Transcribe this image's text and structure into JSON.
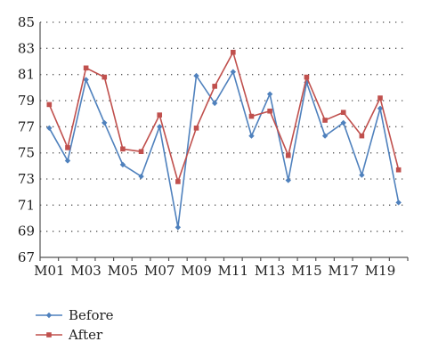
{
  "chart_data": {
    "type": "line",
    "title": "",
    "xlabel": "",
    "ylabel": "",
    "categories": [
      "M01",
      "M02",
      "M03",
      "M04",
      "M05",
      "M06",
      "M07",
      "M08",
      "M09",
      "M10",
      "M11",
      "M12",
      "M13",
      "M14",
      "M15",
      "M16",
      "M17",
      "M18",
      "M19",
      "M20"
    ],
    "x_tick_labels": [
      "M01",
      "M03",
      "M05",
      "M07",
      "M09",
      "M11",
      "M13",
      "M15",
      "M17",
      "M19"
    ],
    "y_ticks": [
      67,
      69,
      71,
      73,
      75,
      77,
      79,
      81,
      83,
      85
    ],
    "ylim": [
      67,
      85
    ],
    "grid": {
      "horizontal": true,
      "style": "dotted"
    },
    "legend": {
      "placement": "bottom-left"
    },
    "series": [
      {
        "name": "Before",
        "color": "#4f81bd",
        "marker": "diamond",
        "values": [
          76.9,
          74.4,
          80.6,
          77.3,
          74.1,
          73.2,
          77.0,
          69.3,
          80.9,
          78.8,
          81.2,
          76.3,
          79.5,
          72.9,
          80.4,
          76.3,
          77.3,
          73.3,
          78.4,
          71.2
        ]
      },
      {
        "name": "After",
        "color": "#c0504d",
        "marker": "square",
        "values": [
          78.7,
          75.4,
          81.5,
          80.8,
          75.3,
          75.1,
          77.9,
          72.8,
          76.9,
          80.1,
          82.7,
          77.8,
          78.2,
          74.8,
          80.8,
          77.5,
          78.1,
          76.3,
          79.2,
          73.7
        ]
      }
    ]
  }
}
